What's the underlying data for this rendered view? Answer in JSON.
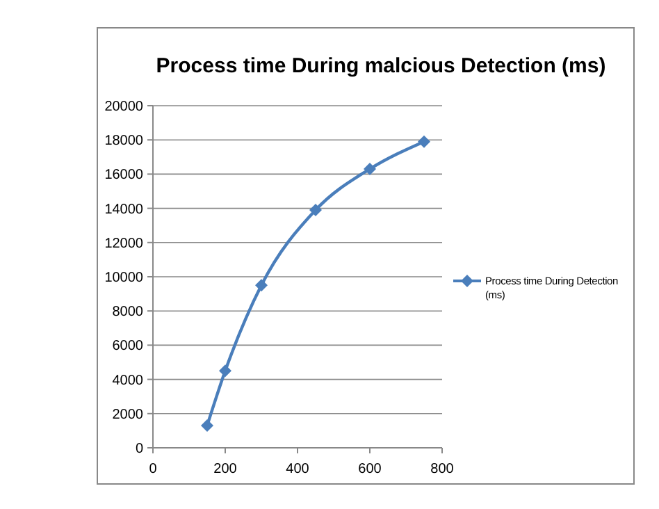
{
  "chart_data": {
    "type": "line",
    "title": "Process time During malcious  Detection (ms)",
    "x": [
      150,
      200,
      300,
      450,
      600,
      750
    ],
    "series": [
      {
        "name": "Process time During Detection (ms)",
        "color": "#4a7ebb",
        "values": [
          1300,
          4500,
          9500,
          13900,
          16300,
          17900
        ]
      }
    ],
    "xlim": [
      0,
      800
    ],
    "xticks": [
      0,
      200,
      400,
      600,
      800
    ],
    "ylim": [
      0,
      20000
    ],
    "yticks": [
      0,
      2000,
      4000,
      6000,
      8000,
      10000,
      12000,
      14000,
      16000,
      18000,
      20000
    ],
    "grid": "y",
    "legend": "right",
    "marker": "diamond",
    "line_style": "solid"
  }
}
